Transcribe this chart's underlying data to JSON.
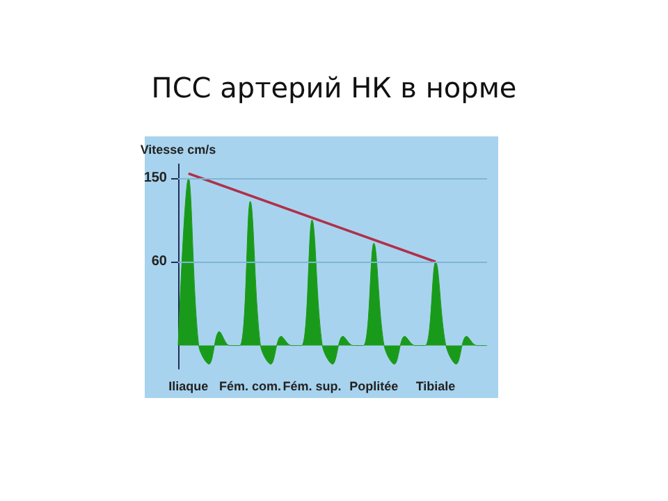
{
  "chart_data": {
    "type": "area",
    "title": "ПСС артерий НК в норме",
    "ylabel": "Vitesse cm/s",
    "categories": [
      null,
      "Iliaque",
      null,
      null,
      null,
      null,
      null,
      "Fém. com.",
      null,
      null,
      null,
      null,
      null,
      "Fém. sup.",
      null,
      null,
      null,
      null,
      null,
      "Poplitée",
      null,
      null,
      null,
      null,
      null,
      "Tibiale",
      null,
      null,
      null,
      null,
      null
    ],
    "series": [
      {
        "color": "#1a9a1a",
        "values": [
          -30,
          150,
          -30,
          -50,
          -15,
          -30,
          -30,
          125,
          -30,
          -50,
          -20,
          -30,
          -30,
          105,
          -30,
          -50,
          -20,
          -30,
          -30,
          80,
          -30,
          -50,
          -20,
          -30,
          -30,
          60,
          -30,
          -50,
          -20,
          -30,
          -30
        ]
      },
      {
        "type": "line",
        "color": "#b0304a",
        "x": [
          "Iliaque",
          "Tibiale"
        ],
        "values": [
          155,
          60
        ]
      }
    ],
    "ylim": [
      -55,
      165
    ],
    "yticks": [
      60,
      150
    ],
    "ref_lines": [
      {
        "axis": "y",
        "value": 150,
        "color": "#7fb6d6"
      },
      {
        "axis": "y",
        "value": 60,
        "color": "#7fb6d6"
      }
    ],
    "grid": false,
    "marker": "none"
  }
}
